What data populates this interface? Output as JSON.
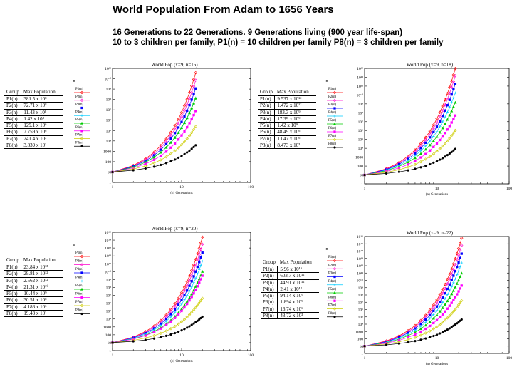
{
  "header": {
    "title": "World Population From Adam to 1656 Years",
    "line1": "16 Generations to 22 Generations. 9 Generations living (900 year life-span)",
    "line2": "10 to 3 children per family, P1(n) = 10 children per family P8(n) = 3 children per family"
  },
  "colors": {
    "series": [
      "#ff0000",
      "#ff00cc",
      "#0000ff",
      "#00ccff",
      "#00cc00",
      "#ff00ff",
      "#cccc00",
      "#000000",
      "#ff3300"
    ]
  },
  "tables": [
    {
      "col1": "Group",
      "col2": "Max Population",
      "rows": [
        [
          "P1(n)",
          "381.5 x 10⁸"
        ],
        [
          "P2(n)",
          "72.71 x 10⁸"
        ],
        [
          "P3(n)",
          "11.43 x 10⁸"
        ],
        [
          "P4(n)",
          "1.42 x 10⁸"
        ],
        [
          "P5(n)",
          "129.1 x 10⁶"
        ],
        [
          "P6(n)",
          "7.759 x 10⁶"
        ],
        [
          "P7(n)",
          "241.4 x 10³"
        ],
        [
          "P8(n)",
          "3.839 x 10³"
        ]
      ]
    },
    {
      "col1": "Group",
      "col2": "Max Population",
      "rows": [
        [
          "P1(n)",
          "9.537 x 10¹²"
        ],
        [
          "P2(n)",
          "1.472 x 10¹²"
        ],
        [
          "P3(n)",
          "183.3 x 10⁹"
        ],
        [
          "P4(n)",
          "17.39 x 10⁹"
        ],
        [
          "P5(n)",
          "1.42 x 10⁹"
        ],
        [
          "P6(n)",
          "48.49 x 10⁶"
        ],
        [
          "P7(n)",
          "1.047 x 10⁶"
        ],
        [
          "P8(n)",
          "8.473 x 10³"
        ]
      ]
    },
    {
      "col1": "Group",
      "col2": "Max Population",
      "rows": [
        [
          "P1(n)",
          "23.84 x 10¹³"
        ],
        [
          "P2(n)",
          "29.81 x 10¹²"
        ],
        [
          "P3(n)",
          "2.562 x 10¹²"
        ],
        [
          "P4(n)",
          "21.31 x 10¹⁰"
        ],
        [
          "P5(n)",
          "10.44 x 10⁹"
        ],
        [
          "P6(n)",
          "30.51 x 10⁸"
        ],
        [
          "P7(n)",
          "4.186 x 10⁶"
        ],
        [
          "P8(n)",
          "19.43 x 10³"
        ]
      ]
    },
    {
      "col1": "Group",
      "col2": "Max Population",
      "rows": [
        [
          "P1(n)",
          "5.96 x 10¹⁵"
        ],
        [
          "P2(n)",
          "603.7 x 10¹²"
        ],
        [
          "P3(n)",
          "44.91 x 10¹²"
        ],
        [
          "P4(n)",
          "2.41 x 10¹²"
        ],
        [
          "P5(n)",
          "94.14 x 10⁹"
        ],
        [
          "P6(n)",
          "1.894 x 10⁹"
        ],
        [
          "P7(n)",
          "16.74 x 10⁶"
        ],
        [
          "P8(n)",
          "43.72 x 10³"
        ]
      ]
    }
  ],
  "chart_data": [
    {
      "type": "line",
      "title": "World Pop (x=9, n=16)",
      "xlabel": "(n) Generations",
      "ylabel": "n",
      "xscale": "log",
      "yscale": "log",
      "xlim": [
        1,
        100
      ],
      "ylim": [
        1,
        100000000000.0
      ],
      "x_ticks": [
        "1",
        "10",
        "100"
      ],
      "y_ticks": [
        "1",
        "10",
        "100",
        "1000",
        "10⁴",
        "10⁵",
        "10⁶",
        "10⁷",
        "10⁸",
        "10⁹",
        "10¹⁰",
        "10¹¹"
      ],
      "generations": 16,
      "series": [
        {
          "name": "P1(n)",
          "end": 38150000000.0
        },
        {
          "name": "P2(n)",
          "end": 7271000000.0
        },
        {
          "name": "P3(n)",
          "end": 1143000000.0
        },
        {
          "name": "P4(n)",
          "end": 142000000.0
        },
        {
          "name": "P5(n)",
          "end": 129100000.0
        },
        {
          "name": "P6(n)",
          "end": 7759000.0
        },
        {
          "name": "P7(n)",
          "end": 241400.0
        },
        {
          "name": "P8(n)",
          "end": 3839
        }
      ]
    },
    {
      "type": "line",
      "title": "World Pop (x=9, n=18)",
      "xlabel": "(n) Generations",
      "ylabel": "n",
      "xscale": "log",
      "yscale": "log",
      "xlim": [
        1,
        100
      ],
      "ylim": [
        1,
        10000000000000.0
      ],
      "x_ticks": [
        "1",
        "10",
        "100"
      ],
      "y_ticks": [
        "1",
        "10",
        "100",
        "1000",
        "10⁴",
        "10⁵",
        "10⁶",
        "10⁷",
        "10⁸",
        "10⁹",
        "10¹⁰",
        "10¹¹",
        "10¹²",
        "10¹³"
      ],
      "generations": 18,
      "series": [
        {
          "name": "P1(n)",
          "end": 9537000000000.0
        },
        {
          "name": "P2(n)",
          "end": 1472000000000.0
        },
        {
          "name": "P3(n)",
          "end": 183300000000.0
        },
        {
          "name": "P4(n)",
          "end": 17390000000.0
        },
        {
          "name": "P5(n)",
          "end": 1420000000.0
        },
        {
          "name": "P6(n)",
          "end": 48490000.0
        },
        {
          "name": "P7(n)",
          "end": 1047000.0
        },
        {
          "name": "P8(n)",
          "end": 8473
        }
      ]
    },
    {
      "type": "line",
      "title": "World Pop (x=9, n=20)",
      "xlabel": "(n) Generations",
      "ylabel": "n",
      "xscale": "log",
      "yscale": "log",
      "xlim": [
        1,
        100
      ],
      "ylim": [
        1,
        1000000000000000.0
      ],
      "x_ticks": [
        "1",
        "10",
        "100"
      ],
      "y_ticks": [
        "1",
        "10",
        "100",
        "1000",
        "10⁴",
        "10⁵",
        "10⁶",
        "10⁷",
        "10⁸",
        "10⁹",
        "10¹⁰",
        "10¹¹",
        "10¹²",
        "10¹³",
        "10¹⁴",
        "10¹⁵"
      ],
      "generations": 20,
      "series": [
        {
          "name": "P1(n)",
          "end": 238400000000000.0
        },
        {
          "name": "P2(n)",
          "end": 29810000000000.0
        },
        {
          "name": "P3(n)",
          "end": 2562000000000.0
        },
        {
          "name": "P4(n)",
          "end": 213100000000.0
        },
        {
          "name": "P5(n)",
          "end": 10440000000.0
        },
        {
          "name": "P6(n)",
          "end": 3051000000.0
        },
        {
          "name": "P7(n)",
          "end": 4186000.0
        },
        {
          "name": "P8(n)",
          "end": 19430
        }
      ]
    },
    {
      "type": "line",
      "title": "World Pop (x=9, n=22)",
      "xlabel": "(n) Generations",
      "ylabel": "n",
      "xscale": "log",
      "yscale": "log",
      "xlim": [
        1,
        100
      ],
      "ylim": [
        1,
        1e+16
      ],
      "x_ticks": [
        "1",
        "10",
        "100"
      ],
      "y_ticks": [
        "1",
        "10",
        "100",
        "1000",
        "10⁴",
        "10⁵",
        "10⁶",
        "10⁷",
        "10⁸",
        "10⁹",
        "10¹⁰",
        "10¹¹",
        "10¹²",
        "10¹³",
        "10¹⁴",
        "10¹⁵",
        "10¹⁶"
      ],
      "generations": 22,
      "series": [
        {
          "name": "P1(n)",
          "end": 5960000000000000.0
        },
        {
          "name": "P2(n)",
          "end": 603700000000000.0
        },
        {
          "name": "P3(n)",
          "end": 44910000000000.0
        },
        {
          "name": "P4(n)",
          "end": 2410000000000.0
        },
        {
          "name": "P5(n)",
          "end": 94140000000.0
        },
        {
          "name": "P6(n)",
          "end": 1894000000.0
        },
        {
          "name": "P7(n)",
          "end": 16740000.0
        },
        {
          "name": "P8(n)",
          "end": 43720
        }
      ]
    }
  ]
}
